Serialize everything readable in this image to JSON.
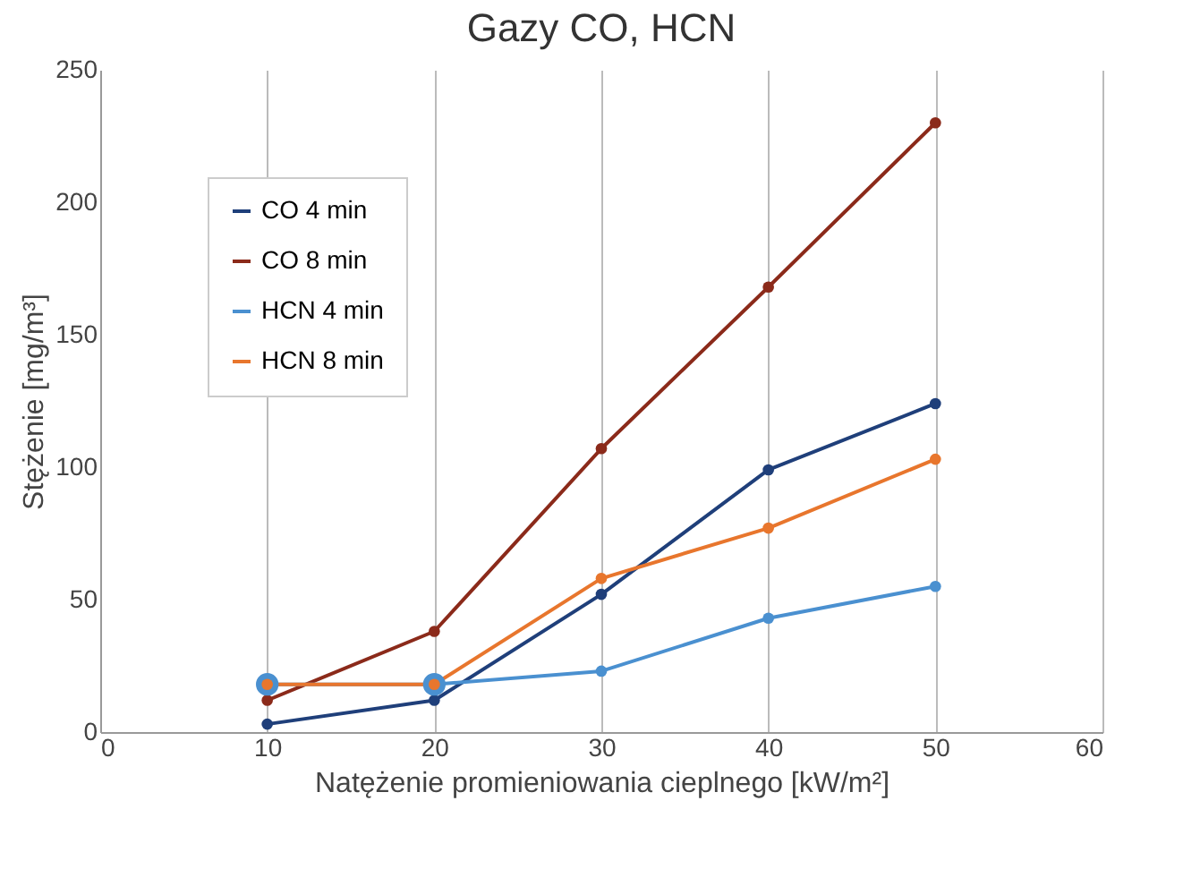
{
  "chart_data": {
    "type": "line",
    "title": "Gazy CO,  HCN",
    "xlabel": "Natężenie promieniowania cieplnego [kW/m²]",
    "ylabel": "Stężenie [mg/m³]",
    "x": [
      10,
      20,
      30,
      40,
      50
    ],
    "series": [
      {
        "name": "CO 4 min",
        "color": "#1f3f7a",
        "values": [
          3,
          12,
          52,
          99,
          124
        ]
      },
      {
        "name": "CO 8 min",
        "color": "#8b2a1a",
        "values": [
          12,
          38,
          107,
          168,
          230
        ]
      },
      {
        "name": "HCN 4 min",
        "color": "#4a90d0",
        "values": [
          18,
          18,
          23,
          43,
          55
        ]
      },
      {
        "name": "HCN 8 min",
        "color": "#e8762d",
        "values": [
          18,
          18,
          58,
          77,
          103
        ]
      }
    ],
    "xlim": [
      0,
      60
    ],
    "xticks": [
      0,
      10,
      20,
      30,
      40,
      50,
      60
    ],
    "ylim": [
      0,
      250
    ],
    "yticks": [
      0,
      50,
      100,
      150,
      200,
      250
    ],
    "grid": "x",
    "legend": "top left",
    "marker": "circle"
  }
}
